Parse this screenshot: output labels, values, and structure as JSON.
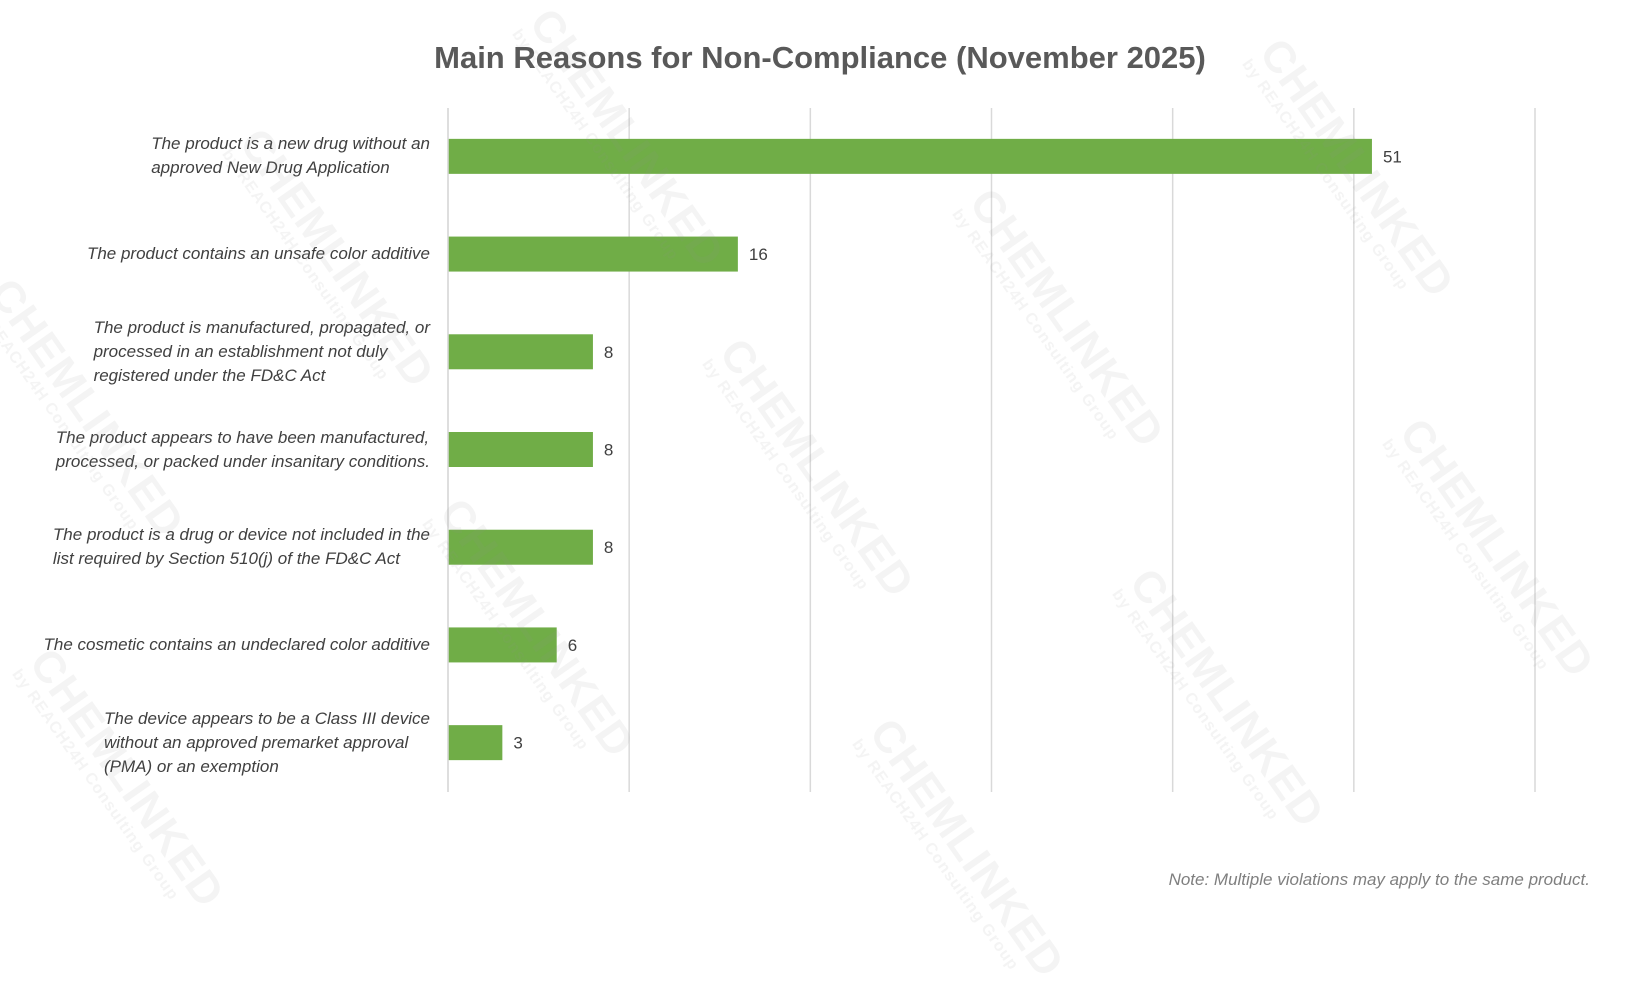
{
  "chart_data": {
    "type": "bar",
    "orientation": "horizontal",
    "title": "Main Reasons for Non-Compliance (November 2025)",
    "categories": [
      "The product is a new drug without an\napproved New Drug Application",
      "The product contains an unsafe color additive",
      "The product is manufactured, propagated, or\nprocessed in an establishment not duly\nregistered under the FD&C Act",
      "The product appears to have been manufactured,\nprocessed, or packed under insanitary conditions.",
      "The product is a drug or device not included in the\nlist required by Section 510(j) of the FD&C Act",
      "The cosmetic contains an undeclared color additive",
      "The device appears to be a Class III device\nwithout an approved premarket approval\n(PMA) or an exemption"
    ],
    "values": [
      51,
      16,
      8,
      8,
      8,
      6,
      3
    ],
    "data_labels": [
      "51",
      "16",
      "8",
      "8",
      "8",
      "6",
      "3"
    ],
    "xlim": [
      0,
      60
    ],
    "grid": true,
    "legend": "none",
    "bar_color": "#70ad47",
    "grid_color": "#d9d9d9",
    "note": "Note: Multiple violations may apply to the same product."
  },
  "watermark": {
    "brand": "CHEMLINKED",
    "byline": "by REACH24H Consulting Group"
  }
}
